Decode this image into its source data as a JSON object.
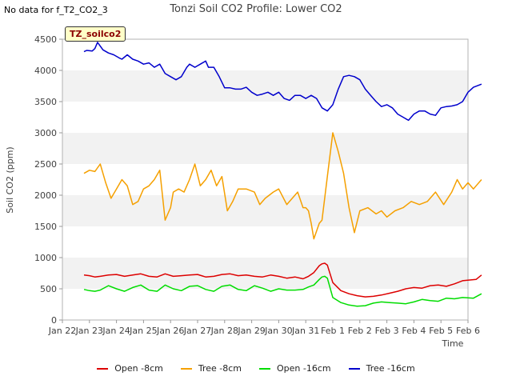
{
  "no_data_note": "No data for f_T2_CO2_3",
  "site_tag": "TZ_soilco2",
  "chart_data": {
    "type": "line",
    "title": "Tonzi Soil CO2 Profile: Lower CO2",
    "xlabel": "Time",
    "ylabel": "Soil CO2 (ppm)",
    "ylim": [
      0,
      4500
    ],
    "yticks": [
      0,
      500,
      1000,
      1500,
      2000,
      2500,
      3000,
      3500,
      4000,
      4500
    ],
    "xlim": [
      0,
      15
    ],
    "xtick_labels": [
      "Jan 22",
      "Jan 23",
      "Jan 24",
      "Jan 25",
      "Jan 26",
      "Jan 27",
      "Jan 28",
      "Jan 29",
      "Jan 30",
      "Jan 31",
      "Feb 1",
      "Feb 2",
      "Feb 3",
      "Feb 4",
      "Feb 5",
      "Feb 6"
    ],
    "band_color": "#f2f2f2",
    "series": [
      {
        "name": "Open -8cm",
        "color": "#dd0000",
        "x": [
          0.8,
          1.0,
          1.2,
          1.4,
          1.7,
          2.0,
          2.3,
          2.6,
          2.9,
          3.2,
          3.5,
          3.8,
          4.1,
          4.4,
          4.7,
          5.0,
          5.3,
          5.6,
          5.9,
          6.2,
          6.5,
          6.8,
          7.1,
          7.4,
          7.7,
          8.0,
          8.3,
          8.6,
          8.9,
          9.1,
          9.3,
          9.5,
          9.6,
          9.7,
          9.8,
          10.0,
          10.3,
          10.6,
          10.9,
          11.2,
          11.5,
          11.8,
          12.1,
          12.4,
          12.7,
          13.0,
          13.3,
          13.6,
          13.9,
          14.2,
          14.5,
          14.8,
          15.3,
          15.5
        ],
        "values": [
          720,
          710,
          690,
          700,
          720,
          730,
          700,
          720,
          740,
          700,
          690,
          740,
          700,
          710,
          720,
          730,
          690,
          700,
          730,
          740,
          710,
          720,
          700,
          690,
          720,
          700,
          670,
          690,
          660,
          700,
          760,
          870,
          900,
          910,
          880,
          600,
          470,
          420,
          390,
          370,
          380,
          400,
          430,
          460,
          500,
          520,
          510,
          550,
          560,
          540,
          580,
          630,
          650,
          720
        ]
      },
      {
        "name": "Tree -8cm",
        "color": "#f5a000",
        "x": [
          0.8,
          1.0,
          1.2,
          1.4,
          1.6,
          1.8,
          2.0,
          2.2,
          2.4,
          2.6,
          2.8,
          3.0,
          3.2,
          3.4,
          3.6,
          3.8,
          4.0,
          4.1,
          4.3,
          4.5,
          4.7,
          4.9,
          5.1,
          5.3,
          5.5,
          5.7,
          5.9,
          6.1,
          6.3,
          6.5,
          6.8,
          7.1,
          7.3,
          7.5,
          7.8,
          8.0,
          8.3,
          8.5,
          8.7,
          8.9,
          9.0,
          9.1,
          9.2,
          9.3,
          9.5,
          9.6,
          9.8,
          10.0,
          10.2,
          10.4,
          10.6,
          10.8,
          11.0,
          11.3,
          11.6,
          11.8,
          12.0,
          12.3,
          12.6,
          12.9,
          13.2,
          13.5,
          13.8,
          14.1,
          14.4,
          14.6,
          14.8,
          15.0,
          15.2,
          15.3,
          15.5
        ],
        "values": [
          2350,
          2400,
          2380,
          2500,
          2200,
          1950,
          2100,
          2250,
          2150,
          1850,
          1900,
          2100,
          2150,
          2250,
          2400,
          1600,
          1800,
          2050,
          2100,
          2050,
          2250,
          2500,
          2150,
          2250,
          2400,
          2150,
          2300,
          1750,
          1900,
          2100,
          2100,
          2050,
          1850,
          1950,
          2050,
          2100,
          1850,
          1950,
          2050,
          1800,
          1800,
          1750,
          1550,
          1300,
          1550,
          1600,
          2300,
          3000,
          2700,
          2350,
          1800,
          1400,
          1750,
          1800,
          1700,
          1750,
          1650,
          1750,
          1800,
          1900,
          1850,
          1900,
          2050,
          1850,
          2050,
          2250,
          2100,
          2200,
          2100,
          2150,
          2250
        ]
      },
      {
        "name": "Open -16cm",
        "color": "#00dd00",
        "x": [
          0.8,
          1.0,
          1.2,
          1.4,
          1.7,
          2.0,
          2.3,
          2.6,
          2.9,
          3.2,
          3.5,
          3.8,
          4.1,
          4.4,
          4.7,
          5.0,
          5.3,
          5.6,
          5.9,
          6.2,
          6.5,
          6.8,
          7.1,
          7.4,
          7.7,
          8.0,
          8.3,
          8.6,
          8.9,
          9.1,
          9.3,
          9.5,
          9.6,
          9.7,
          9.8,
          10.0,
          10.3,
          10.6,
          10.9,
          11.2,
          11.5,
          11.8,
          12.1,
          12.4,
          12.7,
          13.0,
          13.3,
          13.6,
          13.9,
          14.2,
          14.5,
          14.8,
          15.2,
          15.5
        ],
        "values": [
          490,
          470,
          460,
          480,
          550,
          500,
          460,
          520,
          560,
          480,
          460,
          560,
          500,
          470,
          540,
          550,
          490,
          460,
          540,
          560,
          490,
          470,
          550,
          510,
          460,
          500,
          480,
          480,
          490,
          530,
          560,
          650,
          690,
          700,
          670,
          360,
          280,
          240,
          220,
          230,
          270,
          290,
          280,
          270,
          260,
          290,
          330,
          310,
          300,
          350,
          340,
          360,
          350,
          420
        ]
      },
      {
        "name": "Tree -16cm",
        "color": "#0000cc",
        "x": [
          0.8,
          0.9,
          1.1,
          1.2,
          1.3,
          1.5,
          1.7,
          1.9,
          2.1,
          2.2,
          2.4,
          2.6,
          2.8,
          3.0,
          3.2,
          3.4,
          3.6,
          3.8,
          4.0,
          4.2,
          4.4,
          4.6,
          4.7,
          4.9,
          5.1,
          5.3,
          5.4,
          5.6,
          5.8,
          6.0,
          6.2,
          6.4,
          6.6,
          6.8,
          7.0,
          7.2,
          7.4,
          7.6,
          7.8,
          8.0,
          8.2,
          8.4,
          8.6,
          8.8,
          9.0,
          9.2,
          9.4,
          9.6,
          9.8,
          10.0,
          10.2,
          10.4,
          10.6,
          10.8,
          11.0,
          11.2,
          11.4,
          11.6,
          11.8,
          12.0,
          12.2,
          12.4,
          12.6,
          12.8,
          13.0,
          13.2,
          13.4,
          13.6,
          13.8,
          14.0,
          14.2,
          14.4,
          14.6,
          14.8,
          15.0,
          15.2,
          15.5
        ],
        "values": [
          4300,
          4320,
          4310,
          4350,
          4450,
          4330,
          4280,
          4250,
          4200,
          4180,
          4250,
          4180,
          4150,
          4100,
          4120,
          4050,
          4100,
          3950,
          3900,
          3850,
          3900,
          4050,
          4100,
          4050,
          4100,
          4150,
          4050,
          4050,
          3900,
          3720,
          3720,
          3700,
          3700,
          3730,
          3650,
          3600,
          3620,
          3650,
          3600,
          3650,
          3550,
          3520,
          3600,
          3600,
          3550,
          3600,
          3550,
          3400,
          3350,
          3450,
          3700,
          3900,
          3920,
          3900,
          3850,
          3700,
          3600,
          3500,
          3420,
          3450,
          3400,
          3300,
          3250,
          3200,
          3300,
          3350,
          3350,
          3300,
          3280,
          3400,
          3420,
          3430,
          3450,
          3500,
          3650,
          3730,
          3780
        ]
      }
    ]
  }
}
